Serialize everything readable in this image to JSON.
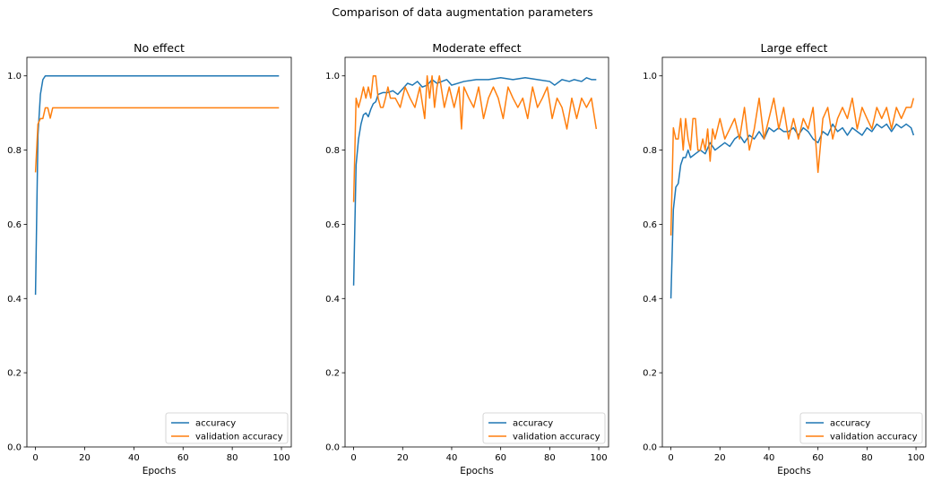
{
  "figure": {
    "suptitle": "Comparison of data augmentation parameters"
  },
  "colors": {
    "accuracy": "#1f77b4",
    "validation": "#ff7f0e"
  },
  "chart_data": [
    {
      "type": "line",
      "title": "No effect",
      "xlabel": "Epochs",
      "ylabel": "",
      "xlim": [
        -3.5,
        104
      ],
      "ylim": [
        0,
        1.05
      ],
      "xticks": [
        0,
        20,
        40,
        60,
        80,
        100
      ],
      "yticks": [
        0.0,
        0.2,
        0.4,
        0.6,
        0.8,
        1.0
      ],
      "grid": false,
      "legend_position": "lower-right",
      "series": [
        {
          "name": "accuracy",
          "x": [
            0,
            1,
            2,
            3,
            4,
            5,
            7,
            10,
            20,
            40,
            60,
            80,
            99
          ],
          "values": [
            0.41,
            0.84,
            0.95,
            0.99,
            1.0,
            1.0,
            1.0,
            1.0,
            1.0,
            1.0,
            1.0,
            1.0,
            1.0
          ]
        },
        {
          "name": "validation accuracy",
          "x": [
            0,
            1,
            2,
            3,
            4,
            5,
            6,
            7,
            8,
            10,
            20,
            40,
            60,
            80,
            99
          ],
          "values": [
            0.74,
            0.87,
            0.885,
            0.885,
            0.914,
            0.914,
            0.886,
            0.914,
            0.914,
            0.914,
            0.914,
            0.914,
            0.914,
            0.914,
            0.914
          ]
        }
      ]
    },
    {
      "type": "line",
      "title": "Moderate effect",
      "xlabel": "Epochs",
      "ylabel": "",
      "xlim": [
        -3.5,
        104
      ],
      "ylim": [
        0,
        1.05
      ],
      "xticks": [
        0,
        20,
        40,
        60,
        80,
        100
      ],
      "yticks": [
        0.0,
        0.2,
        0.4,
        0.6,
        0.8,
        1.0
      ],
      "grid": false,
      "legend_position": "lower-right",
      "series": [
        {
          "name": "accuracy",
          "x": [
            0,
            1,
            2,
            3,
            4,
            5,
            6,
            7,
            8,
            9,
            10,
            12,
            14,
            16,
            18,
            20,
            22,
            24,
            26,
            28,
            30,
            32,
            34,
            36,
            38,
            40,
            45,
            50,
            55,
            60,
            65,
            70,
            75,
            80,
            82,
            85,
            88,
            90,
            93,
            95,
            97,
            99
          ],
          "values": [
            0.435,
            0.76,
            0.83,
            0.87,
            0.895,
            0.9,
            0.89,
            0.91,
            0.925,
            0.93,
            0.95,
            0.955,
            0.955,
            0.96,
            0.95,
            0.965,
            0.98,
            0.975,
            0.985,
            0.97,
            0.975,
            0.99,
            0.98,
            0.985,
            0.99,
            0.975,
            0.985,
            0.99,
            0.99,
            0.995,
            0.99,
            0.995,
            0.99,
            0.985,
            0.975,
            0.99,
            0.985,
            0.99,
            0.985,
            0.995,
            0.99,
            0.99
          ]
        },
        {
          "name": "validation accuracy",
          "x": [
            0,
            1,
            2,
            3,
            4,
            5,
            6,
            7,
            8,
            9,
            10,
            11,
            12,
            13,
            14,
            15,
            17,
            19,
            21,
            23,
            25,
            27,
            29,
            30,
            31,
            32,
            33,
            34,
            35,
            37,
            39,
            41,
            43,
            44,
            45,
            47,
            49,
            51,
            53,
            55,
            57,
            59,
            61,
            63,
            65,
            67,
            69,
            71,
            73,
            75,
            77,
            79,
            81,
            83,
            85,
            87,
            89,
            91,
            93,
            95,
            97,
            99
          ],
          "values": [
            0.66,
            0.94,
            0.915,
            0.94,
            0.97,
            0.94,
            0.97,
            0.94,
            1.0,
            1.0,
            0.94,
            0.915,
            0.915,
            0.94,
            0.97,
            0.94,
            0.94,
            0.915,
            0.97,
            0.94,
            0.915,
            0.97,
            0.885,
            1.0,
            0.94,
            1.0,
            0.915,
            0.97,
            1.0,
            0.915,
            0.97,
            0.915,
            0.97,
            0.857,
            0.97,
            0.94,
            0.915,
            0.97,
            0.885,
            0.94,
            0.97,
            0.94,
            0.885,
            0.97,
            0.94,
            0.915,
            0.94,
            0.885,
            0.97,
            0.915,
            0.94,
            0.97,
            0.885,
            0.94,
            0.915,
            0.857,
            0.94,
            0.885,
            0.94,
            0.915,
            0.94,
            0.857
          ]
        }
      ]
    },
    {
      "type": "line",
      "title": "Large effect",
      "xlabel": "Epochs",
      "ylabel": "",
      "xlim": [
        -3.5,
        104
      ],
      "ylim": [
        0,
        1.05
      ],
      "xticks": [
        0,
        20,
        40,
        60,
        80,
        100
      ],
      "yticks": [
        0.0,
        0.2,
        0.4,
        0.6,
        0.8,
        1.0
      ],
      "grid": false,
      "legend_position": "lower-right",
      "series": [
        {
          "name": "accuracy",
          "x": [
            0,
            1,
            2,
            3,
            4,
            5,
            6,
            7,
            8,
            10,
            12,
            14,
            16,
            18,
            20,
            22,
            24,
            26,
            28,
            30,
            32,
            34,
            36,
            38,
            40,
            42,
            44,
            46,
            48,
            50,
            52,
            54,
            56,
            58,
            60,
            62,
            64,
            66,
            68,
            70,
            72,
            74,
            76,
            78,
            80,
            82,
            84,
            86,
            88,
            90,
            92,
            94,
            96,
            98,
            99
          ],
          "values": [
            0.4,
            0.64,
            0.7,
            0.71,
            0.76,
            0.78,
            0.78,
            0.8,
            0.78,
            0.79,
            0.8,
            0.79,
            0.82,
            0.8,
            0.81,
            0.82,
            0.81,
            0.83,
            0.84,
            0.82,
            0.84,
            0.83,
            0.85,
            0.83,
            0.86,
            0.85,
            0.86,
            0.85,
            0.85,
            0.86,
            0.84,
            0.86,
            0.85,
            0.83,
            0.82,
            0.85,
            0.84,
            0.87,
            0.85,
            0.86,
            0.84,
            0.86,
            0.85,
            0.84,
            0.86,
            0.85,
            0.87,
            0.86,
            0.87,
            0.85,
            0.87,
            0.86,
            0.87,
            0.86,
            0.84
          ]
        },
        {
          "name": "validation accuracy",
          "x": [
            0,
            1,
            2,
            3,
            4,
            5,
            6,
            7,
            8,
            9,
            10,
            11,
            12,
            13,
            14,
            15,
            16,
            17,
            18,
            19,
            20,
            22,
            24,
            26,
            28,
            30,
            32,
            34,
            36,
            38,
            40,
            42,
            44,
            46,
            48,
            50,
            52,
            54,
            56,
            58,
            59,
            60,
            62,
            64,
            66,
            68,
            70,
            72,
            74,
            76,
            78,
            80,
            82,
            84,
            86,
            88,
            90,
            92,
            94,
            96,
            98,
            99
          ],
          "values": [
            0.57,
            0.86,
            0.83,
            0.83,
            0.885,
            0.8,
            0.885,
            0.83,
            0.8,
            0.885,
            0.885,
            0.8,
            0.8,
            0.83,
            0.8,
            0.857,
            0.77,
            0.857,
            0.83,
            0.857,
            0.885,
            0.83,
            0.857,
            0.885,
            0.83,
            0.915,
            0.8,
            0.857,
            0.94,
            0.83,
            0.885,
            0.94,
            0.857,
            0.915,
            0.83,
            0.885,
            0.83,
            0.885,
            0.857,
            0.915,
            0.83,
            0.74,
            0.885,
            0.915,
            0.83,
            0.885,
            0.915,
            0.885,
            0.94,
            0.857,
            0.915,
            0.885,
            0.857,
            0.915,
            0.885,
            0.915,
            0.857,
            0.915,
            0.885,
            0.915,
            0.915,
            0.94
          ]
        }
      ]
    }
  ]
}
